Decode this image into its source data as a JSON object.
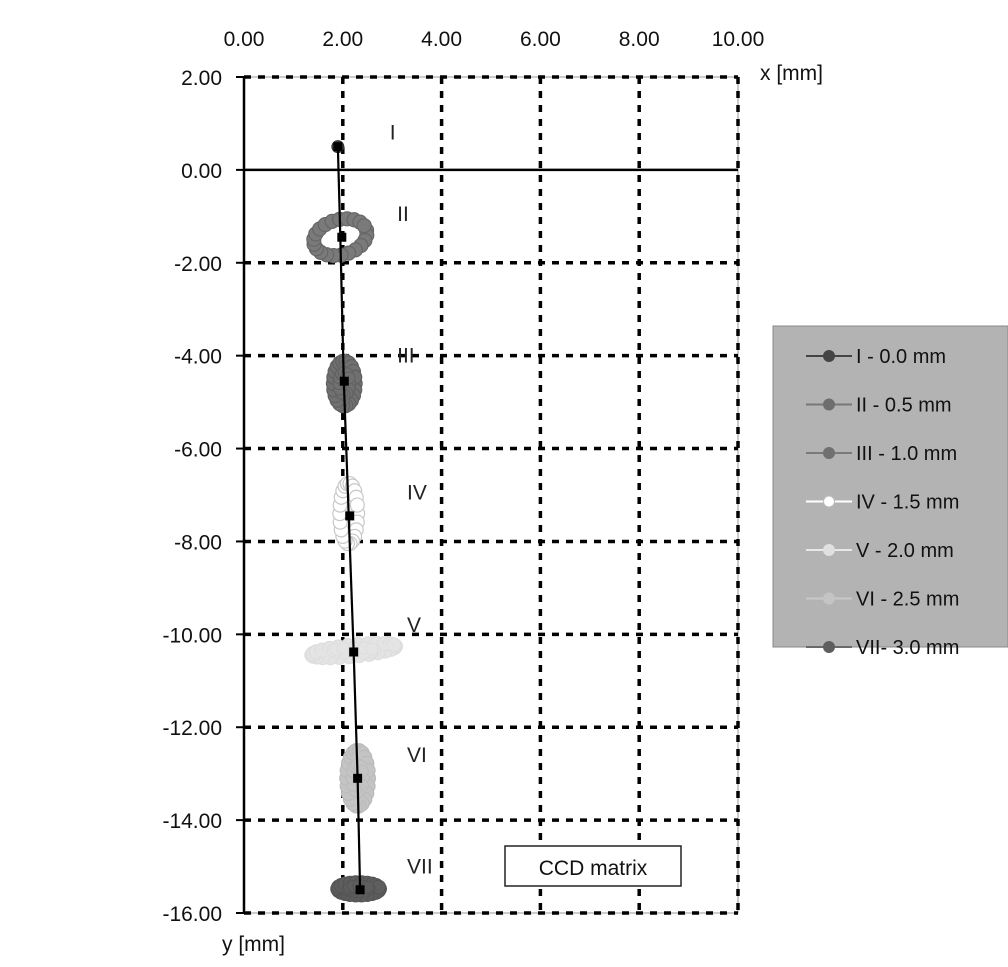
{
  "chart_data": {
    "type": "scatter",
    "title": "",
    "xlabel": "x [mm]",
    "ylabel": "y [mm]",
    "xlim": [
      0,
      10
    ],
    "ylim": [
      -16,
      2
    ],
    "x_axis_position": "top",
    "x_ticks": [
      "0.00",
      "2.00",
      "4.00",
      "6.00",
      "8.00",
      "10.00"
    ],
    "y_ticks": [
      "2.00",
      "0.00",
      "-2.00",
      "-4.00",
      "-6.00",
      "-8.00",
      "-10.00",
      "-12.00",
      "-14.00",
      "-16.00"
    ],
    "grid": "dashed",
    "legend_position": "right",
    "legend": [
      {
        "label": "I   - 0.0 mm",
        "color": "#444444",
        "line": "#444444"
      },
      {
        "label": "II  - 0.5 mm",
        "color": "#6e6e6e",
        "line": "#777777"
      },
      {
        "label": "III - 1.0 mm",
        "color": "#707070",
        "line": "#7a7a7a"
      },
      {
        "label": "IV - 1.5 mm",
        "color": "#ffffff",
        "line": "#ffffff"
      },
      {
        "label": "V  - 2.0 mm",
        "color": "#e0e0e0",
        "line": "#e8e8e8"
      },
      {
        "label": "VI - 2.5 mm",
        "color": "#c4c4c4",
        "line": "#c8c8c8"
      },
      {
        "label": "VII- 3.0 mm",
        "color": "#5e5e5e",
        "line": "#6a6a6a"
      }
    ],
    "series": [
      {
        "name": "I   - 0.0 mm",
        "shape": "point",
        "cx": 1.9,
        "cy": 0.5,
        "rx": 0.08,
        "ry": 0.08,
        "color": "#444444",
        "stroke": "#333333"
      },
      {
        "name": "II  - 0.5 mm",
        "shape": "ring",
        "cx": 1.95,
        "cy": -1.45,
        "rx": 0.55,
        "ry": 0.38,
        "tilt": -15,
        "color": "#7a7a7a",
        "stroke": "#666666"
      },
      {
        "name": "III - 1.0 mm",
        "shape": "filled-ellipse",
        "cx": 2.03,
        "cy": -4.6,
        "rx": 0.22,
        "ry": 0.48,
        "color": "#707070",
        "stroke": "#606060"
      },
      {
        "name": "IV - 1.5 mm",
        "shape": "ring",
        "cx": 2.12,
        "cy": -7.4,
        "rx": 0.18,
        "ry": 0.65,
        "color": "#ffffff",
        "stroke": "#c8c8c8"
      },
      {
        "name": "V  - 2.0 mm",
        "shape": "band",
        "cx": 2.22,
        "cy": -10.35,
        "rx": 0.85,
        "ry": 0.12,
        "tilt": -6,
        "color": "#e4e4e4",
        "stroke": "#dddddd"
      },
      {
        "name": "VI - 2.5 mm",
        "shape": "filled-ellipse",
        "cx": 2.3,
        "cy": -13.1,
        "rx": 0.22,
        "ry": 0.6,
        "color": "#c4c4c4",
        "stroke": "#bbbbbb"
      },
      {
        "name": "VII- 3.0 mm",
        "shape": "filled-ellipse",
        "cx": 2.32,
        "cy": -15.48,
        "rx": 0.42,
        "ry": 0.13,
        "color": "#5e5e5e",
        "stroke": "#555555"
      }
    ],
    "centroids": [
      {
        "x": 1.9,
        "y": 0.5
      },
      {
        "x": 1.98,
        "y": -1.45
      },
      {
        "x": 2.03,
        "y": -4.55
      },
      {
        "x": 2.14,
        "y": -7.45
      },
      {
        "x": 2.22,
        "y": -10.38
      },
      {
        "x": 2.3,
        "y": -13.1
      },
      {
        "x": 2.35,
        "y": -15.5
      }
    ],
    "trajectory": [
      {
        "x": 1.9,
        "y": 0.5
      },
      {
        "x": 1.95,
        "y": -1.45
      },
      {
        "x": 2.02,
        "y": -4.55
      },
      {
        "x": 2.12,
        "y": -7.45
      },
      {
        "x": 2.22,
        "y": -10.38
      },
      {
        "x": 2.3,
        "y": -13.1
      },
      {
        "x": 2.35,
        "y": -15.5
      }
    ],
    "annotations": [
      {
        "text": "I",
        "x": 2.95,
        "y": 0.65
      },
      {
        "text": "II",
        "x": 3.1,
        "y": -1.1
      },
      {
        "text": "III",
        "x": 3.1,
        "y": -4.15
      },
      {
        "text": "IV",
        "x": 3.3,
        "y": -7.1
      },
      {
        "text": "V",
        "x": 3.3,
        "y": -9.95
      },
      {
        "text": "VI",
        "x": 3.3,
        "y": -12.75
      },
      {
        "text": "VII",
        "x": 3.3,
        "y": -15.15
      }
    ],
    "note_box": {
      "text": "CCD matrix",
      "x_center": 7.05,
      "y_center": -15.0
    }
  }
}
